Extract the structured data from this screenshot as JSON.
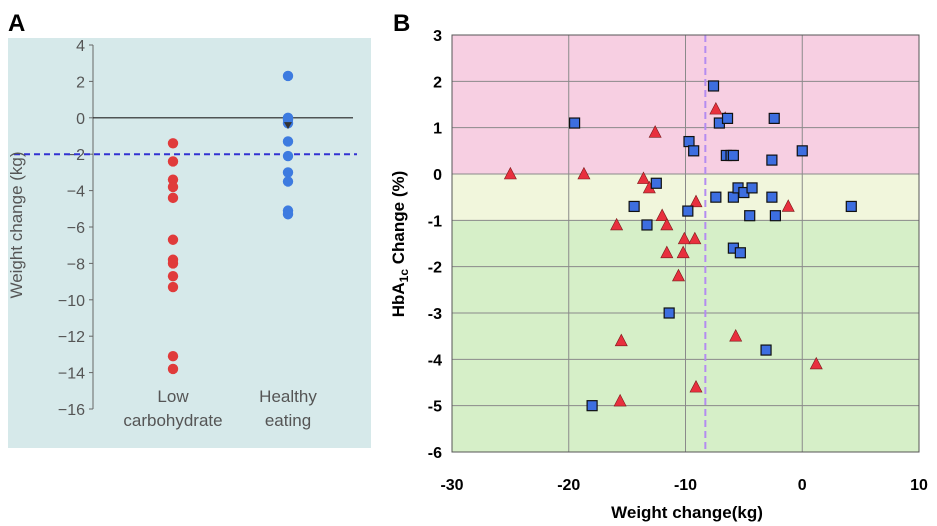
{
  "panel_a_letter": "A",
  "panel_b_letter": "B",
  "colors": {
    "panel_a_bg": "#d6e9ea",
    "low_carb": "#e03b3b",
    "healthy": "#3d7be0",
    "dashed_line": "#3232d2",
    "b_top_band": "#f7cfe2",
    "b_mid_band": "#f1f6dc",
    "b_bottom_band": "#d6efc8",
    "b_vline": "#b48cf0",
    "triangle": "#e8303e",
    "square": "#3d6ee0"
  },
  "chart_data": [
    {
      "type": "scatter",
      "ylabel": "Weight change (kg)",
      "ylim": [
        -16,
        4
      ],
      "yticks": [
        4,
        2,
        0,
        -2,
        -4,
        -6,
        -8,
        -10,
        -12,
        -14,
        -16
      ],
      "categories": [
        {
          "label_lines": [
            "Low",
            "carbohydrate"
          ]
        },
        {
          "label_lines": [
            "Healthy",
            "eating"
          ]
        }
      ],
      "reference_line": -2,
      "series": [
        {
          "values": [
            -1.4,
            -2.4,
            -3.4,
            -3.8,
            -4.4,
            -6.7,
            -7.8,
            -8.0,
            -8.7,
            -9.3,
            -13.1,
            -13.8
          ]
        },
        {
          "values": [
            2.3,
            0.0,
            -0.1,
            -0.3,
            -1.3,
            -2.1,
            -3.0,
            -3.5,
            -5.1,
            -5.3
          ]
        }
      ],
      "marker_point": -0.4,
      "grid": false
    },
    {
      "type": "scatter",
      "xlabel": "Weight change(kg)",
      "ylabel_main": "HbA",
      "ylabel_sub": "1c",
      "ylabel_rest": " Change (%)",
      "xlim": [
        -30,
        10
      ],
      "ylim": [
        -6,
        3
      ],
      "xticks": [
        -30,
        -20,
        -10,
        0,
        10
      ],
      "yticks": [
        3,
        2,
        1,
        0,
        -1,
        -2,
        -3,
        -4,
        -5,
        -6
      ],
      "bands": [
        {
          "from": 0,
          "to": 3
        },
        {
          "from": -1,
          "to": 0
        },
        {
          "from": -6,
          "to": -1
        }
      ],
      "vertical_reference": -8.3,
      "grid": true,
      "series": [
        {
          "marker": "triangle",
          "points": [
            [
              -25,
              0.0
            ],
            [
              -18.7,
              0.0
            ],
            [
              -15.9,
              -1.1
            ],
            [
              -15.5,
              -3.6
            ],
            [
              -15.6,
              -4.9
            ],
            [
              -13.6,
              -0.1
            ],
            [
              -13.1,
              -0.3
            ],
            [
              -12.6,
              0.9
            ],
            [
              -12,
              -0.9
            ],
            [
              -11.6,
              -1.1
            ],
            [
              -11.6,
              -1.7
            ],
            [
              -10.6,
              -2.2
            ],
            [
              -10.2,
              -1.7
            ],
            [
              -10.1,
              -1.4
            ],
            [
              -9.2,
              -1.4
            ],
            [
              -9.1,
              -0.6
            ],
            [
              -9.1,
              -4.6
            ],
            [
              -7.4,
              1.4
            ],
            [
              -6.6,
              1.2
            ],
            [
              -5.7,
              -3.5
            ],
            [
              -1.2,
              -0.7
            ],
            [
              1.2,
              -4.1
            ]
          ]
        },
        {
          "marker": "square",
          "points": [
            [
              -19.5,
              1.1
            ],
            [
              -18,
              -5.0
            ],
            [
              -14.4,
              -0.7
            ],
            [
              -13.3,
              -1.1
            ],
            [
              -12.5,
              -0.2
            ],
            [
              -11.4,
              -3.0
            ],
            [
              -9.8,
              -0.8
            ],
            [
              -9.7,
              0.7
            ],
            [
              -9.3,
              0.5
            ],
            [
              -7.6,
              1.9
            ],
            [
              -7.4,
              -0.5
            ],
            [
              -7.1,
              1.1
            ],
            [
              -6.5,
              0.4
            ],
            [
              -6.4,
              1.2
            ],
            [
              -6.1,
              0.4
            ],
            [
              -5.9,
              0.4
            ],
            [
              -5.9,
              -0.5
            ],
            [
              -5.9,
              -1.6
            ],
            [
              -5.5,
              -0.3
            ],
            [
              -5.3,
              -1.7
            ],
            [
              -5.0,
              -0.4
            ],
            [
              -4.5,
              -0.9
            ],
            [
              -4.3,
              -0.3
            ],
            [
              -3.1,
              -3.8
            ],
            [
              -2.6,
              0.3
            ],
            [
              -2.6,
              -0.5
            ],
            [
              -2.4,
              1.2
            ],
            [
              -2.3,
              -0.9
            ],
            [
              0.0,
              0.5
            ],
            [
              4.2,
              -0.7
            ]
          ]
        }
      ]
    }
  ]
}
